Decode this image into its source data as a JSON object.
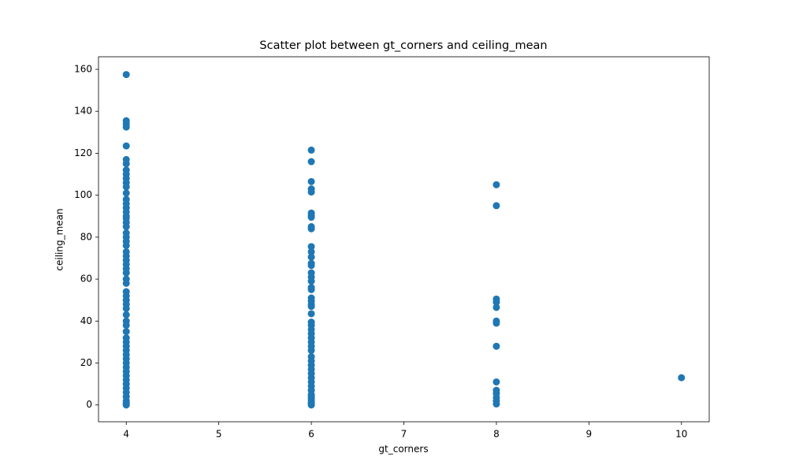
{
  "chart_data": {
    "type": "scatter",
    "title": "Scatter plot between gt_corners and ceiling_mean",
    "x_label": "gt_corners",
    "y_label": "ceiling_mean",
    "color": "#1f77b4",
    "xlim": [
      3.7,
      10.3
    ],
    "ylim": [
      -8,
      166
    ],
    "xticks": [
      4,
      5,
      6,
      7,
      8,
      9,
      10
    ],
    "yticks": [
      0,
      20,
      40,
      60,
      80,
      100,
      120,
      140,
      160
    ],
    "grid": false,
    "x": [
      4,
      4,
      4,
      4,
      4,
      4,
      4,
      4,
      4,
      4,
      4,
      4,
      4,
      4,
      4,
      4,
      4,
      4,
      4,
      4,
      4,
      4,
      4,
      4,
      4,
      4,
      4,
      4,
      4,
      4,
      4,
      4,
      4,
      4,
      4,
      4,
      4,
      4,
      4,
      4,
      4,
      4,
      4,
      4,
      4,
      4,
      4,
      4,
      4,
      4,
      4,
      4,
      4,
      4,
      4,
      4,
      4,
      4,
      4,
      4,
      4,
      6,
      6,
      6,
      6,
      6,
      6,
      6,
      6,
      6,
      6,
      6,
      6,
      6,
      6,
      6,
      6,
      6,
      6,
      6,
      6,
      6,
      6,
      6,
      6,
      6,
      6,
      6,
      6,
      6,
      6,
      6,
      6,
      6,
      6,
      6,
      6,
      6,
      6,
      6,
      6,
      6,
      6,
      6,
      6,
      6,
      6,
      6,
      6,
      6,
      8,
      8,
      8,
      8,
      8,
      8,
      8,
      8,
      8,
      8,
      8,
      8,
      8,
      8,
      10
    ],
    "values": [
      157.5,
      135.5,
      134,
      132.5,
      123.5,
      117,
      115,
      112,
      110,
      108,
      106,
      104,
      101,
      98,
      96,
      94,
      92,
      90,
      89,
      87,
      85,
      82,
      80,
      78,
      76,
      73,
      71,
      69,
      67,
      65,
      63,
      60,
      58,
      54,
      52,
      50,
      48,
      46,
      43,
      40,
      38,
      35,
      32,
      30,
      28,
      26,
      24,
      22,
      20,
      18,
      16,
      14,
      12,
      10,
      8,
      6,
      4,
      2,
      1,
      0.5,
      0,
      121.5,
      116,
      106.5,
      103,
      101.5,
      91.5,
      90.5,
      89.5,
      85,
      84,
      75.5,
      73,
      70.5,
      67.5,
      66.5,
      63,
      61,
      59,
      56,
      55,
      51,
      49.5,
      48,
      47,
      43.5,
      39.5,
      38,
      36,
      34,
      32,
      30,
      28,
      26,
      23,
      21,
      19,
      17,
      15,
      13,
      11,
      9,
      7,
      5,
      4,
      3,
      2,
      1,
      0.5,
      0,
      105,
      95,
      50.5,
      49,
      46.5,
      40,
      39,
      28,
      11,
      7,
      5.5,
      3.5,
      2,
      0.5,
      13
    ]
  }
}
